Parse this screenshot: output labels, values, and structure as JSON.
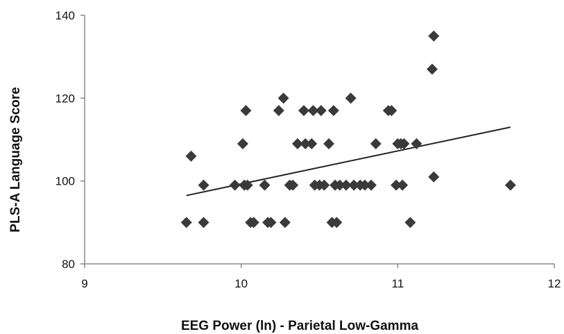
{
  "chart_data": {
    "type": "scatter",
    "title": "",
    "xlabel": "EEG Power (ln) - Parietal Low-Gamma",
    "ylabel": "PLS-A Language Score",
    "xlim": [
      9,
      12
    ],
    "ylim": [
      80,
      140
    ],
    "xticks": [
      "9",
      "10",
      "11",
      "12"
    ],
    "yticks": [
      "80",
      "100",
      "120",
      "140"
    ],
    "grid": false,
    "legend": "none",
    "marker": "diamond",
    "marker_color": "#3a3a3a",
    "trendline": {
      "type": "linear",
      "x": [
        9.65,
        11.72
      ],
      "y": [
        96.5,
        113
      ]
    },
    "points": [
      [
        9.65,
        90
      ],
      [
        9.68,
        106
      ],
      [
        9.76,
        99
      ],
      [
        9.76,
        90
      ],
      [
        9.96,
        99
      ],
      [
        10.01,
        109
      ],
      [
        10.02,
        99
      ],
      [
        10.03,
        117
      ],
      [
        10.04,
        99
      ],
      [
        10.06,
        90
      ],
      [
        10.08,
        90
      ],
      [
        10.15,
        99
      ],
      [
        10.17,
        90
      ],
      [
        10.19,
        90
      ],
      [
        10.24,
        117
      ],
      [
        10.27,
        120
      ],
      [
        10.28,
        90
      ],
      [
        10.31,
        99
      ],
      [
        10.33,
        99
      ],
      [
        10.36,
        109
      ],
      [
        10.4,
        117
      ],
      [
        10.41,
        109
      ],
      [
        10.45,
        109
      ],
      [
        10.46,
        117
      ],
      [
        10.47,
        99
      ],
      [
        10.5,
        99
      ],
      [
        10.51,
        117
      ],
      [
        10.53,
        99
      ],
      [
        10.56,
        109
      ],
      [
        10.58,
        90
      ],
      [
        10.59,
        117
      ],
      [
        10.6,
        99
      ],
      [
        10.61,
        90
      ],
      [
        10.63,
        99
      ],
      [
        10.67,
        99
      ],
      [
        10.7,
        120
      ],
      [
        10.72,
        99
      ],
      [
        10.76,
        99
      ],
      [
        10.79,
        99
      ],
      [
        10.83,
        99
      ],
      [
        10.86,
        109
      ],
      [
        10.94,
        117
      ],
      [
        10.96,
        117
      ],
      [
        10.99,
        99
      ],
      [
        11.0,
        109
      ],
      [
        11.02,
        109
      ],
      [
        11.03,
        99
      ],
      [
        11.04,
        109
      ],
      [
        11.08,
        90
      ],
      [
        11.12,
        109
      ],
      [
        11.22,
        127
      ],
      [
        11.23,
        135
      ],
      [
        11.23,
        101
      ],
      [
        11.72,
        99
      ]
    ]
  }
}
